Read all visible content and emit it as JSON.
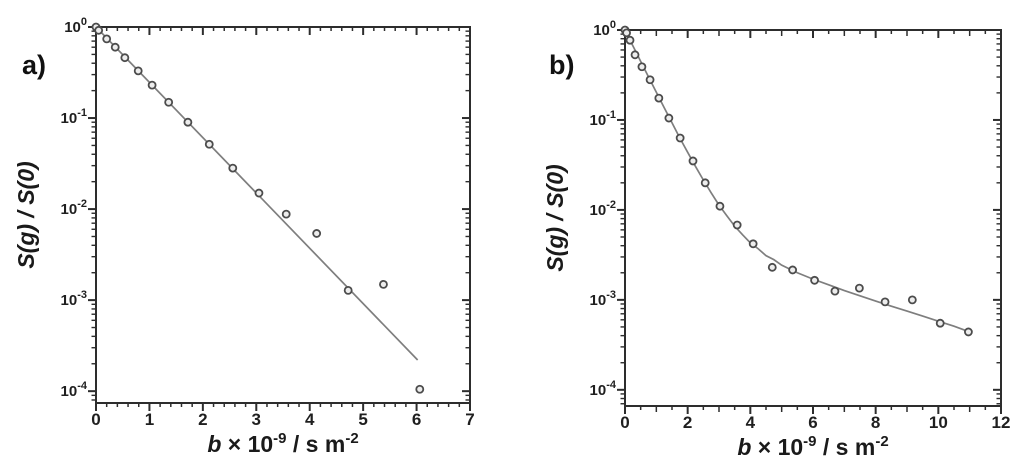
{
  "colors": {
    "background": "#ffffff",
    "axis": "#2d2d2d",
    "tick_label": "#1f1f1f",
    "curve": "#7e7e7e",
    "marker_stroke": "#4c4c4c",
    "marker_fill": "#ededed",
    "text": "#1a1a1a"
  },
  "chart_data": [
    {
      "type": "scatter",
      "panel_label": "a)",
      "xlabel_plain": "b × 10^-9 / s m^-2",
      "xlabel_parts": [
        {
          "text": "b",
          "style": "italic"
        },
        {
          "text": " × 10",
          "style": "normal"
        },
        {
          "text": "-9",
          "style": "sup"
        },
        {
          "text": " / s m",
          "style": "normal"
        },
        {
          "text": "-2",
          "style": "sup"
        }
      ],
      "ylabel": "S(g) / S(0)",
      "x_axis": {
        "min": 0,
        "max": 7,
        "label_step": 1,
        "minor_step": 0.2,
        "tick_labels": [
          "0",
          "1",
          "2",
          "3",
          "4",
          "5",
          "6",
          "7"
        ]
      },
      "y_axis": {
        "scale": "log",
        "tick_base": "10",
        "tick_exponents": [
          "0",
          "-1",
          "-2",
          "-3",
          "-4"
        ],
        "top_log": 0,
        "bottom_log": -4.13
      },
      "points": [
        [
          0,
          1.0
        ],
        [
          0.05,
          0.92
        ],
        [
          0.2,
          0.74
        ],
        [
          0.36,
          0.6
        ],
        [
          0.54,
          0.46
        ],
        [
          0.79,
          0.33
        ],
        [
          1.05,
          0.23
        ],
        [
          1.36,
          0.149
        ],
        [
          1.72,
          0.09
        ],
        [
          2.12,
          0.0515
        ],
        [
          2.56,
          0.0282
        ],
        [
          3.05,
          0.015
        ],
        [
          3.56,
          0.0088
        ],
        [
          4.13,
          0.0054
        ],
        [
          4.72,
          0.00128
        ],
        [
          5.38,
          0.00149
        ],
        [
          6.06,
          0.000105
        ]
      ],
      "fit_curve": {
        "name": "monoexponential-fit-line",
        "samples": [
          [
            0,
            1.0
          ],
          [
            6.02,
            0.00022
          ]
        ]
      }
    },
    {
      "type": "scatter",
      "panel_label": "b)",
      "xlabel_plain": "b × 10^-9 / s m^-2",
      "xlabel_parts": [
        {
          "text": "b",
          "style": "italic"
        },
        {
          "text": " × 10",
          "style": "normal"
        },
        {
          "text": "-9",
          "style": "sup"
        },
        {
          "text": " / s m",
          "style": "normal"
        },
        {
          "text": "-2",
          "style": "sup"
        }
      ],
      "ylabel": "S(g) / S(0)",
      "x_axis": {
        "min": 0,
        "max": 12,
        "label_step": 2,
        "minor_step": 0.5,
        "tick_labels": [
          "0",
          "2",
          "4",
          "6",
          "8",
          "10",
          "12"
        ]
      },
      "y_axis": {
        "scale": "log",
        "tick_base": "10",
        "tick_exponents": [
          "0",
          "-1",
          "-2",
          "-3",
          "-4"
        ],
        "top_log": 0,
        "bottom_log": -4.18
      },
      "points": [
        [
          0,
          1.0
        ],
        [
          0.05,
          0.93
        ],
        [
          0.16,
          0.77
        ],
        [
          0.32,
          0.53
        ],
        [
          0.54,
          0.39
        ],
        [
          0.8,
          0.28
        ],
        [
          1.08,
          0.175
        ],
        [
          1.4,
          0.105
        ],
        [
          1.76,
          0.063
        ],
        [
          2.17,
          0.035
        ],
        [
          2.56,
          0.02
        ],
        [
          3.03,
          0.011
        ],
        [
          3.58,
          0.0068
        ],
        [
          4.09,
          0.0042
        ],
        [
          4.7,
          0.0023
        ],
        [
          5.35,
          0.00215
        ],
        [
          6.05,
          0.00165
        ],
        [
          6.7,
          0.00125
        ],
        [
          7.48,
          0.00135
        ],
        [
          8.3,
          0.00095
        ],
        [
          9.17,
          0.001
        ],
        [
          10.06,
          0.00055
        ],
        [
          10.96,
          0.00044
        ]
      ],
      "fit_curve": {
        "name": "biexponential-fit-curve",
        "samples": [
          [
            0,
            1.0
          ],
          [
            0.25,
            0.669
          ],
          [
            0.5,
            0.448
          ],
          [
            0.75,
            0.301
          ],
          [
            1,
            0.203
          ],
          [
            1.25,
            0.137
          ],
          [
            1.5,
            0.093
          ],
          [
            1.75,
            0.063
          ],
          [
            2,
            0.0437
          ],
          [
            2.25,
            0.0304
          ],
          [
            2.5,
            0.0215
          ],
          [
            2.75,
            0.0155
          ],
          [
            3,
            0.0113
          ],
          [
            3.25,
            0.0086
          ],
          [
            3.5,
            0.0066
          ],
          [
            3.75,
            0.0053
          ],
          [
            4,
            0.0043
          ],
          [
            4.25,
            0.0037
          ],
          [
            4.5,
            0.0031
          ],
          [
            4.75,
            0.0028
          ],
          [
            5,
            0.00243
          ],
          [
            5.5,
            0.002
          ],
          [
            6,
            0.0017
          ],
          [
            6.5,
            0.00147
          ],
          [
            7,
            0.00127
          ],
          [
            7.5,
            0.00111
          ],
          [
            8,
            0.00097
          ],
          [
            8.5,
            0.00085
          ],
          [
            9,
            0.00075
          ],
          [
            9.5,
            0.00066
          ],
          [
            10,
            0.00058
          ],
          [
            10.5,
            0.00051
          ],
          [
            11,
            0.00044
          ]
        ]
      }
    }
  ]
}
